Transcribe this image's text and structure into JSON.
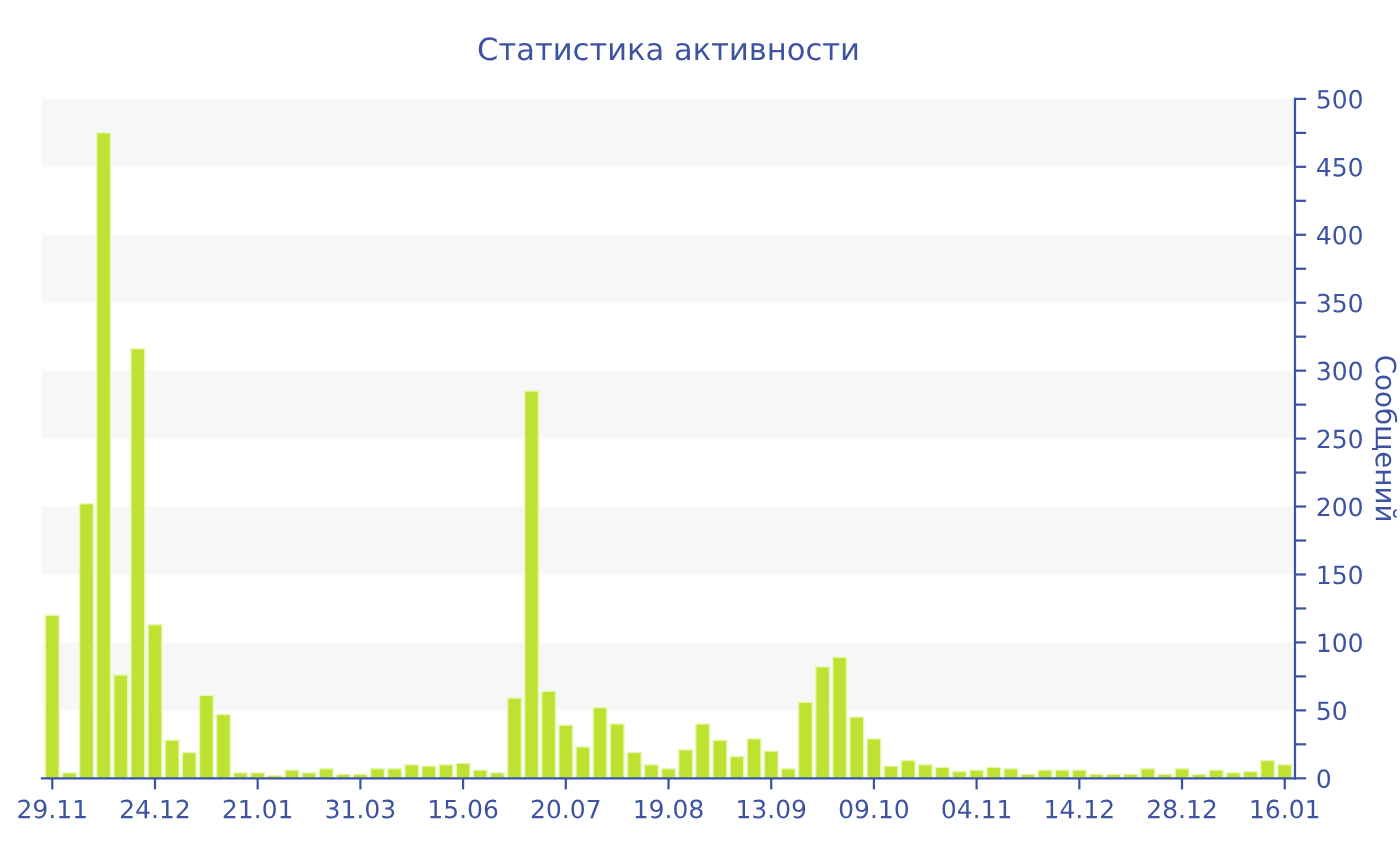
{
  "chart_data": {
    "type": "bar",
    "title": "Статистика активности",
    "ylabel": "Сообщений",
    "categories": [
      "29.11",
      null,
      null,
      null,
      null,
      null,
      "24.12",
      null,
      null,
      null,
      null,
      null,
      "21.01",
      null,
      null,
      null,
      null,
      null,
      "31.03",
      null,
      null,
      null,
      null,
      null,
      "15.06",
      null,
      null,
      null,
      null,
      null,
      "20.07",
      null,
      null,
      null,
      null,
      null,
      "19.08",
      null,
      null,
      null,
      null,
      null,
      "13.09",
      null,
      null,
      null,
      null,
      null,
      "09.10",
      null,
      null,
      null,
      null,
      null,
      "04.11",
      null,
      null,
      null,
      null,
      null,
      "14.12",
      null,
      null,
      null,
      null,
      null,
      "28.12",
      null,
      null,
      null,
      null,
      null,
      "16.01"
    ],
    "values": [
      120,
      4,
      202,
      475,
      76,
      316,
      113,
      28,
      19,
      61,
      47,
      4,
      4,
      2,
      6,
      4,
      7,
      3,
      3,
      7,
      7,
      10,
      9,
      10,
      11,
      6,
      4,
      59,
      285,
      64,
      39,
      23,
      52,
      40,
      19,
      10,
      7,
      21,
      40,
      28,
      16,
      29,
      20,
      7,
      56,
      82,
      89,
      45,
      29,
      9,
      13,
      10,
      8,
      5,
      6,
      8,
      7,
      3,
      6,
      6,
      6,
      3,
      3,
      3,
      7,
      3,
      7,
      3,
      6,
      4,
      5,
      13,
      10
    ],
    "color": "#bde232",
    "ylim": [
      0,
      500
    ],
    "yticks": [
      0,
      {
        "value": 25,
        "label": null
      },
      50,
      {
        "value": 75,
        "label": null
      },
      100,
      {
        "value": 125,
        "label": null
      },
      150,
      {
        "value": 175,
        "label": null
      },
      200,
      {
        "value": 225,
        "label": null
      },
      250,
      {
        "value": 275,
        "label": null
      },
      300,
      {
        "value": 325,
        "label": null
      },
      350,
      {
        "value": 375,
        "label": null
      },
      400,
      {
        "value": 425,
        "label": null
      },
      450,
      {
        "value": 475,
        "label": null
      },
      500
    ],
    "bands": [
      {
        "axis": "y",
        "from": 50,
        "to": 100,
        "color": "#f7f7f7"
      },
      {
        "axis": "y",
        "from": 150,
        "to": 200,
        "color": "#f7f7f7"
      },
      {
        "axis": "y",
        "from": 250,
        "to": 300,
        "color": "#f7f7f7"
      },
      {
        "axis": "y",
        "from": 350,
        "to": 400,
        "color": "#f7f7f7"
      },
      {
        "axis": "y",
        "from": 450,
        "to": 500,
        "color": "#f7f7f7"
      }
    ],
    "grid": false,
    "legend": false
  }
}
